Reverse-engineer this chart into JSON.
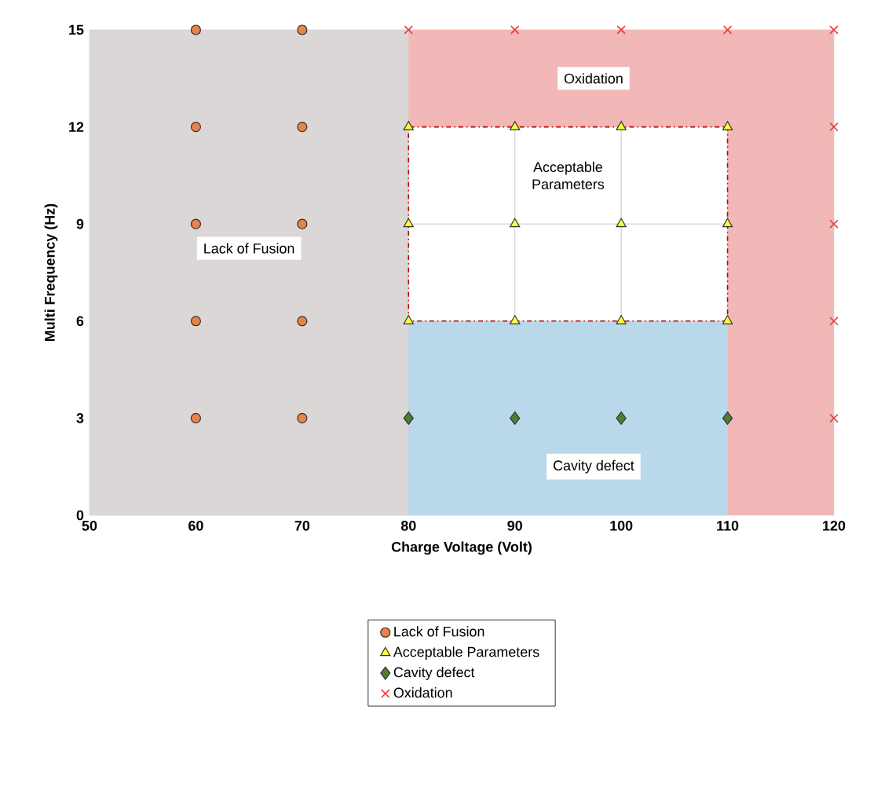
{
  "chart_data": {
    "type": "scatter",
    "xlabel": "Charge Voltage (Volt)",
    "ylabel": "Multi Frequency (Hz)",
    "xlim": [
      50,
      120
    ],
    "xticks": [
      50,
      60,
      70,
      80,
      90,
      100,
      110,
      120
    ],
    "ylim": [
      0,
      15
    ],
    "yticks": [
      0,
      3,
      6,
      9,
      12,
      15
    ],
    "grid": true,
    "legend": "bottom",
    "annotations": [
      "Acceptable Parameters"
    ],
    "bands": [
      {
        "axis": "y",
        "from": 0,
        "to": 6,
        "label": "Cavity defect",
        "color": "#b9d8ea"
      },
      {
        "axis": "y",
        "from": 12,
        "to": 15,
        "label": "Oxidation",
        "color": "#f2b8b8"
      },
      {
        "axis": "x",
        "from": 50,
        "to": 80,
        "label": "Lack of Fusion",
        "color": "#dbd7d6"
      },
      {
        "axis": "x",
        "from": 110,
        "to": 120,
        "color": "#f2b8b8"
      }
    ],
    "series": [
      {
        "name": "Lack of Fusion",
        "color": "#e8834a",
        "marker": "circle",
        "x": [
          60,
          60,
          60,
          60,
          60,
          70,
          70,
          70,
          70,
          70
        ],
        "values": [
          3,
          6,
          9,
          12,
          15,
          3,
          6,
          9,
          12,
          15
        ]
      },
      {
        "name": "Acceptable Parameters",
        "color": "#ffff33",
        "marker": "triangle",
        "x": [
          80,
          90,
          100,
          110,
          80,
          90,
          100,
          110,
          80,
          90,
          100,
          110
        ],
        "values": [
          6,
          6,
          6,
          6,
          9,
          9,
          9,
          9,
          12,
          12,
          12,
          12
        ]
      },
      {
        "name": "Cavity defect",
        "color": "#4a7f34",
        "marker": "diamond",
        "x": [
          80,
          90,
          100,
          110
        ],
        "values": [
          3,
          3,
          3,
          3
        ]
      },
      {
        "name": "Oxidation",
        "color": "#e83a3a",
        "marker": "cross",
        "x": [
          80,
          90,
          100,
          110,
          120,
          120,
          120,
          120,
          120
        ],
        "values": [
          15,
          15,
          15,
          15,
          15,
          12,
          9,
          6,
          3
        ]
      }
    ]
  }
}
